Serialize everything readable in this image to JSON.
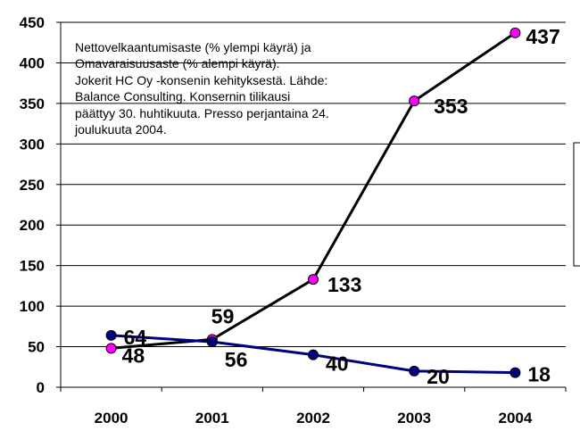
{
  "chart_data": {
    "type": "line",
    "categories": [
      "2000",
      "2001",
      "2002",
      "2003",
      "2004"
    ],
    "ylim": [
      0,
      450
    ],
    "yticks": [
      "0",
      "50",
      "100",
      "150",
      "200",
      "250",
      "300",
      "350",
      "400",
      "450"
    ],
    "grid": true,
    "series": [
      {
        "values": [
          48,
          59,
          133,
          353,
          437
        ],
        "labels": [
          "48",
          "59",
          "133",
          "353",
          "437"
        ],
        "line_color": "#000000",
        "marker_color": "#ff00ff"
      },
      {
        "values": [
          64,
          56,
          40,
          20,
          18
        ],
        "labels": [
          "64",
          "56",
          "40",
          "20",
          "18"
        ],
        "line_color": "#000080",
        "marker_color": "#000080"
      }
    ],
    "annotation_lines": [
      "Nettovelkaantumisaste (%  ylempi käyrä) ja",
      "Omavaraisuusaste (%  alempi käyrä).",
      "Jokerit HC Oy -konsenin kehityksestä. Lähde:",
      "Balance Consulting. Konsernin tilikausi",
      "päättyy 30. huhtikuuta. Presso perjantaina 24.",
      "joulukuuta 2004."
    ]
  }
}
